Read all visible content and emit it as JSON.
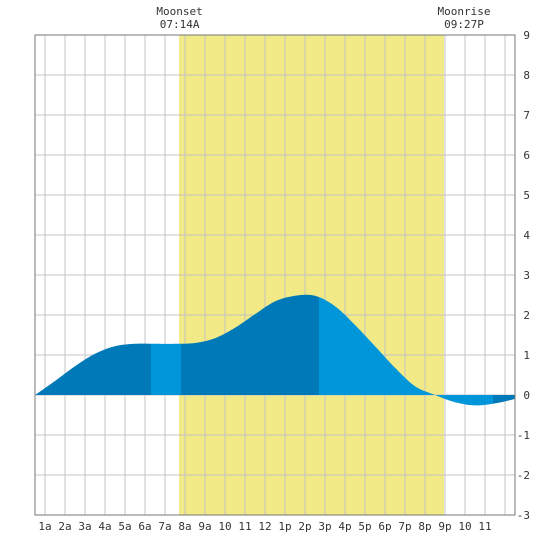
{
  "chart_data": {
    "type": "area",
    "annotations": {
      "moonset": {
        "label": "Moonset",
        "time": "07:14A",
        "x": 7.23
      },
      "moonrise": {
        "label": "Moonrise",
        "time": "09:27P",
        "x": 21.45
      }
    },
    "daylight_band": {
      "start": 7.2,
      "end": 20.45
    },
    "x_ticks": [
      {
        "x": 1,
        "label": "1a"
      },
      {
        "x": 2,
        "label": "2a"
      },
      {
        "x": 3,
        "label": "3a"
      },
      {
        "x": 4,
        "label": "4a"
      },
      {
        "x": 5,
        "label": "5a"
      },
      {
        "x": 6,
        "label": "6a"
      },
      {
        "x": 7,
        "label": "7a"
      },
      {
        "x": 8,
        "label": "8a"
      },
      {
        "x": 9,
        "label": "9a"
      },
      {
        "x": 10,
        "label": "10"
      },
      {
        "x": 11,
        "label": "11"
      },
      {
        "x": 12,
        "label": "12"
      },
      {
        "x": 13,
        "label": "1p"
      },
      {
        "x": 14,
        "label": "2p"
      },
      {
        "x": 15,
        "label": "3p"
      },
      {
        "x": 16,
        "label": "4p"
      },
      {
        "x": 17,
        "label": "5p"
      },
      {
        "x": 18,
        "label": "6p"
      },
      {
        "x": 19,
        "label": "7p"
      },
      {
        "x": 20,
        "label": "8p"
      },
      {
        "x": 21,
        "label": "9p"
      },
      {
        "x": 22,
        "label": "10"
      },
      {
        "x": 23,
        "label": "11"
      }
    ],
    "y_ticks": [
      {
        "y": 9,
        "label": "9"
      },
      {
        "y": 8,
        "label": "8"
      },
      {
        "y": 7,
        "label": "7"
      },
      {
        "y": 6,
        "label": "6"
      },
      {
        "y": 5,
        "label": "5"
      },
      {
        "y": 4,
        "label": "4"
      },
      {
        "y": 3,
        "label": "3"
      },
      {
        "y": 2,
        "label": "2"
      },
      {
        "y": 1,
        "label": "1"
      },
      {
        "y": 0,
        "label": "0"
      },
      {
        "y": -1,
        "label": "-1"
      },
      {
        "y": -2,
        "label": "-2"
      },
      {
        "y": -3,
        "label": "-3"
      }
    ],
    "xlim": [
      0,
      24
    ],
    "ylim": [
      -3,
      9
    ],
    "x_gridlines": [
      0.5,
      1.5,
      2.5,
      3.5,
      4.5,
      5.5,
      6.5,
      7.5,
      8.5,
      9.5,
      10.5,
      11.5,
      12.5,
      13.5,
      14.5,
      15.5,
      16.5,
      17.5,
      18.5,
      19.5,
      20.5,
      21.5,
      22.5,
      23.5
    ],
    "grid": true,
    "series": [
      {
        "x": [
          0,
          1,
          2,
          3,
          4,
          5,
          6,
          7,
          8,
          9,
          10,
          11,
          12,
          13,
          14,
          15,
          16,
          17,
          18,
          19,
          20,
          21,
          22,
          23,
          24
        ],
        "values": [
          0.0,
          0.35,
          0.72,
          1.03,
          1.22,
          1.28,
          1.28,
          1.28,
          1.3,
          1.42,
          1.68,
          2.02,
          2.34,
          2.48,
          2.48,
          2.22,
          1.75,
          1.22,
          0.68,
          0.22,
          0.0,
          -0.18,
          -0.26,
          -0.21,
          -0.1
        ]
      }
    ],
    "shade_bands": [
      {
        "from": 0,
        "to": 5.8,
        "color": "#0079b8"
      },
      {
        "from": 5.8,
        "to": 7.3,
        "color": "#0096d9"
      },
      {
        "from": 7.3,
        "to": 14.2,
        "color": "#0079b8"
      },
      {
        "from": 14.2,
        "to": 22.9,
        "color": "#0096d9"
      },
      {
        "from": 22.9,
        "to": 24,
        "color": "#0079b8"
      }
    ],
    "colors": {
      "daylight": "#f1ea86",
      "grid": "#c4c4c4",
      "axis": "#666666",
      "background": "#ffffff"
    }
  }
}
